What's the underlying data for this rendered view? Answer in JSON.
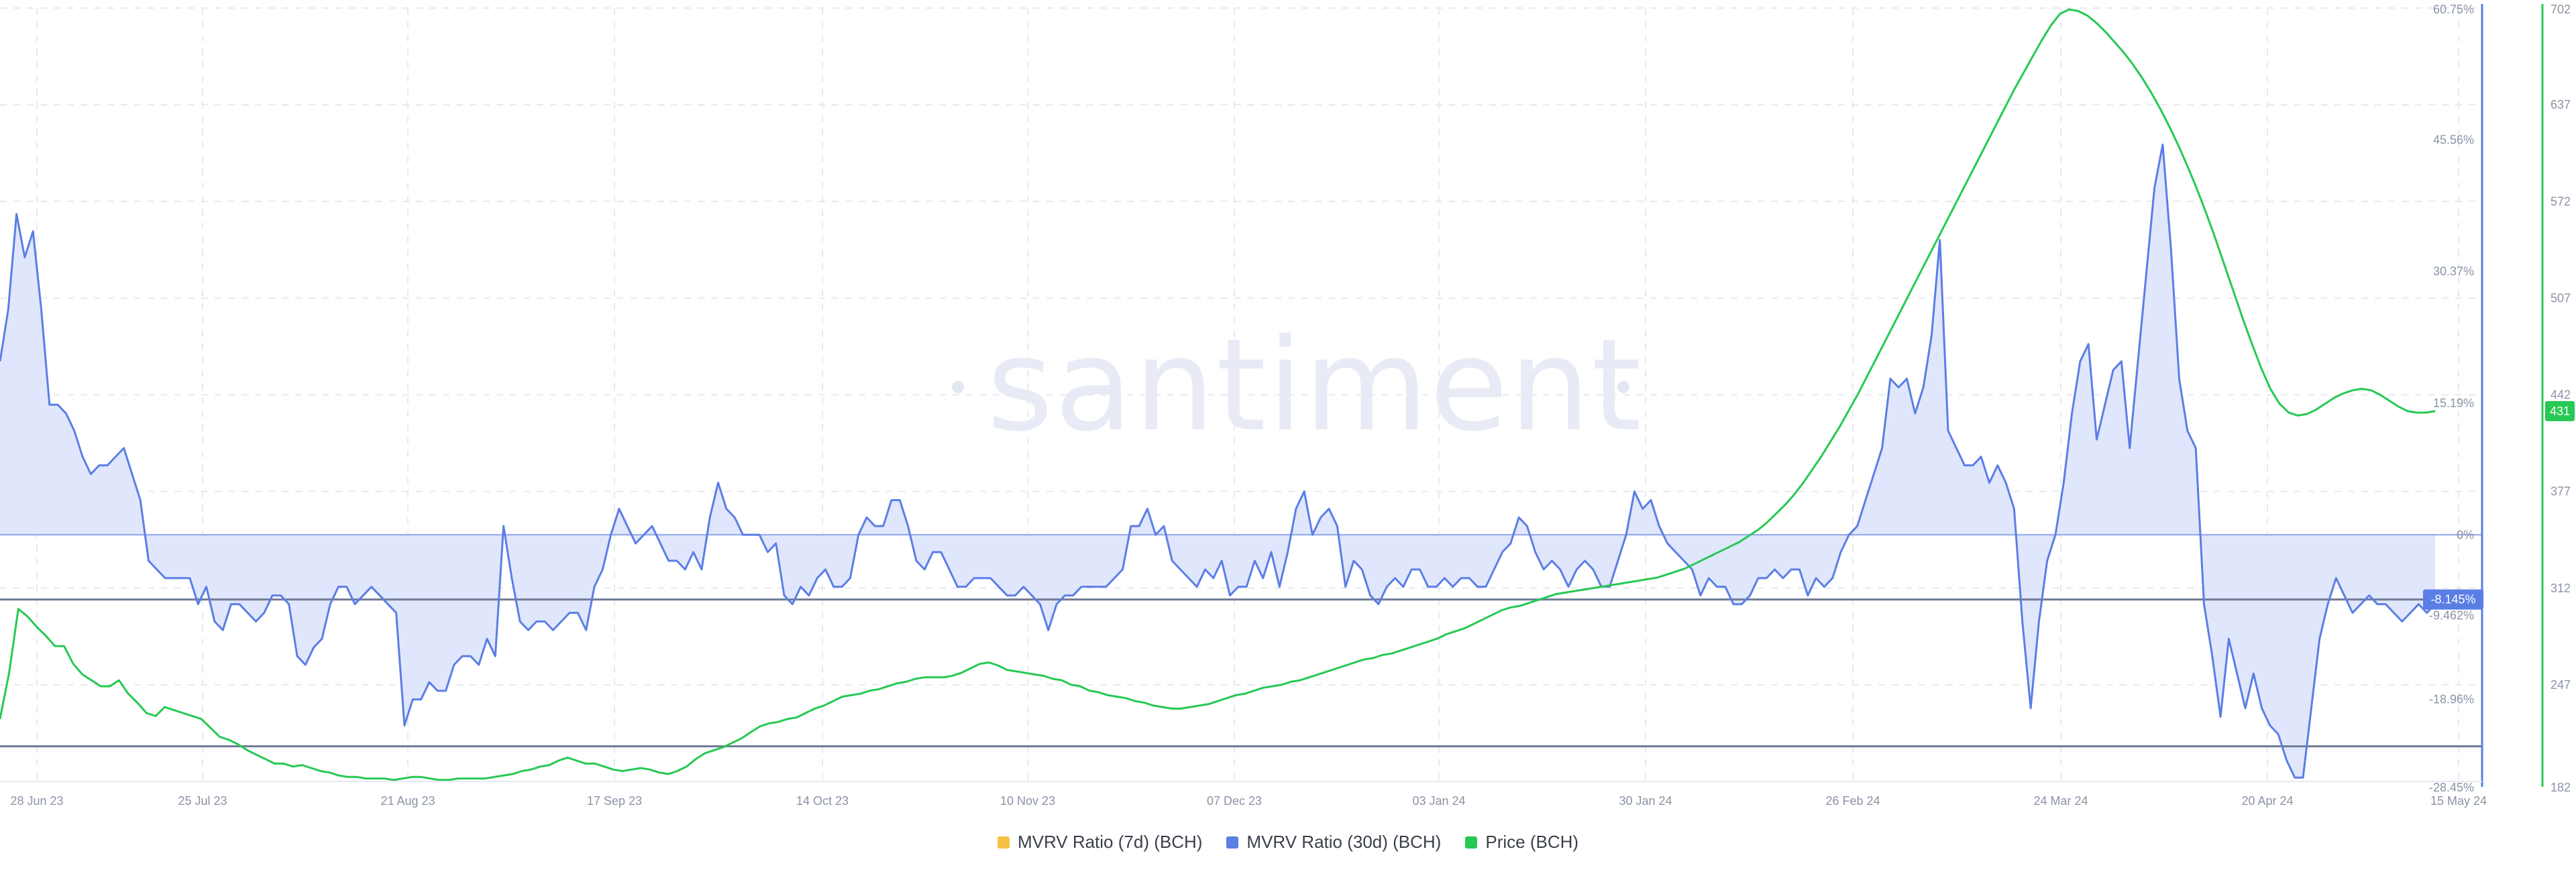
{
  "watermark": "santiment",
  "chart_data": {
    "type": "line",
    "x_labels": [
      "28 Jun 23",
      "25 Jul 23",
      "21 Aug 23",
      "17 Sep 23",
      "14 Oct 23",
      "10 Nov 23",
      "07 Dec 23",
      "03 Jan 24",
      "30 Jan 24",
      "26 Feb 24",
      "24 Mar 24",
      "20 Apr 24",
      "15 May 24"
    ],
    "mvrv_axis": {
      "min": -28.45,
      "max": 60.75,
      "ticks": [
        "60.75%",
        "45.56%",
        "30.37%",
        "15.19%",
        "0%",
        "-18.96%",
        "-28.45%"
      ],
      "tick_values": [
        60.75,
        45.56,
        30.37,
        15.19,
        0,
        -18.96,
        -28.45
      ]
    },
    "price_axis": {
      "min": 182,
      "max": 702,
      "ticks": [
        "702",
        "637",
        "572",
        "507",
        "442",
        "377",
        "312",
        "247",
        "182"
      ],
      "tick_values": [
        702,
        637,
        572,
        507,
        442,
        377,
        312,
        247,
        182
      ]
    },
    "reference_lines": [
      -7.462,
      -24.4
    ],
    "current_mvrv_badge": "-8.145%",
    "current_price_badge": "431",
    "hidden_label": "-9.462%",
    "series": [
      {
        "name": "MVRV Ratio (7d) (BCH)",
        "color": "#f5c244",
        "visible": false,
        "values": []
      },
      {
        "name": "MVRV Ratio (30d) (BCH)",
        "color": "#5b7ee5",
        "visible": true,
        "values": [
          20,
          26,
          37,
          32,
          35,
          26,
          15,
          15,
          14,
          12,
          9,
          7,
          8,
          8,
          9,
          10,
          7,
          4,
          -3,
          -4,
          -5,
          -5,
          -5,
          -5,
          -8,
          -6,
          -10,
          -11,
          -8,
          -8,
          -9,
          -10,
          -9,
          -7,
          -7,
          -8,
          -14,
          -15,
          -13,
          -12,
          -8,
          -6,
          -6,
          -8,
          -7,
          -6,
          -7,
          -8,
          -9,
          -22,
          -19,
          -19,
          -17,
          -18,
          -18,
          -15,
          -14,
          -14,
          -15,
          -12,
          -14,
          1,
          -5,
          -10,
          -11,
          -10,
          -10,
          -11,
          -10,
          -9,
          -9,
          -11,
          -6,
          -4,
          0,
          3,
          1,
          -1,
          0,
          1,
          -1,
          -3,
          -3,
          -4,
          -2,
          -4,
          2,
          6,
          3,
          2,
          0,
          0,
          0,
          -2,
          -1,
          -7,
          -8,
          -6,
          -7,
          -5,
          -4,
          -6,
          -6,
          -5,
          0,
          2,
          1,
          1,
          4,
          4,
          1,
          -3,
          -4,
          -2,
          -2,
          -4,
          -6,
          -6,
          -5,
          -5,
          -5,
          -6,
          -7,
          -7,
          -6,
          -7,
          -8,
          -11,
          -8,
          -7,
          -7,
          -6,
          -6,
          -6,
          -6,
          -5,
          -4,
          1,
          1,
          3,
          0,
          1,
          -3,
          -4,
          -5,
          -6,
          -4,
          -5,
          -3,
          -7,
          -6,
          -6,
          -3,
          -5,
          -2,
          -6,
          -2,
          3,
          5,
          0,
          2,
          3,
          1,
          -6,
          -3,
          -4,
          -7,
          -8,
          -6,
          -5,
          -6,
          -4,
          -4,
          -6,
          -6,
          -5,
          -6,
          -5,
          -5,
          -6,
          -6,
          -4,
          -2,
          -1,
          2,
          1,
          -2,
          -4,
          -3,
          -4,
          -6,
          -4,
          -3,
          -4,
          -6,
          -6,
          -3,
          0,
          5,
          3,
          4,
          1,
          -1,
          -2,
          -3,
          -4,
          -7,
          -5,
          -6,
          -6,
          -8,
          -8,
          -7,
          -5,
          -5,
          -4,
          -5,
          -4,
          -4,
          -7,
          -5,
          -6,
          -5,
          -2,
          0,
          1,
          4,
          7,
          10,
          18,
          17,
          18,
          14,
          17,
          23,
          34,
          12,
          10,
          8,
          8,
          9,
          6,
          8,
          6,
          3,
          -10,
          -20,
          -10,
          -3,
          0,
          6,
          14,
          20,
          22,
          11,
          15,
          19,
          20,
          10,
          20,
          30,
          40,
          45,
          33,
          18,
          12,
          10,
          -8,
          -14,
          -21,
          -12,
          -16,
          -20,
          -16,
          -20,
          -22,
          -23,
          -26,
          -28,
          -28,
          -20,
          -12,
          -8,
          -5,
          -7,
          -9,
          -8,
          -7,
          -8,
          -8,
          -9,
          -10,
          -9,
          -8,
          -9,
          -8
        ]
      },
      {
        "name": "Price (BCH)",
        "color": "#26c953",
        "visible": true,
        "values": [
          224,
          255,
          298,
          293,
          286,
          280,
          273,
          273,
          261,
          254,
          250,
          246,
          246,
          250,
          241,
          235,
          228,
          226,
          232,
          230,
          228,
          226,
          224,
          218,
          212,
          210,
          207,
          203,
          200,
          197,
          194,
          194,
          192,
          193,
          191,
          189,
          188,
          186,
          185,
          185,
          184,
          184,
          184,
          183,
          184,
          185,
          185,
          184,
          183,
          183,
          184,
          184,
          184,
          184,
          185,
          186,
          187,
          189,
          190,
          192,
          193,
          196,
          198,
          196,
          194,
          194,
          192,
          190,
          189,
          190,
          191,
          190,
          188,
          187,
          189,
          192,
          197,
          201,
          203,
          205,
          208,
          211,
          215,
          219,
          221,
          222,
          224,
          225,
          228,
          231,
          233,
          236,
          239,
          240,
          241,
          243,
          244,
          246,
          248,
          249,
          251,
          252,
          252,
          252,
          253,
          255,
          258,
          261,
          262,
          260,
          257,
          256,
          255,
          254,
          253,
          251,
          250,
          247,
          246,
          243,
          242,
          240,
          239,
          238,
          236,
          235,
          233,
          232,
          231,
          231,
          232,
          233,
          234,
          236,
          238,
          240,
          241,
          243,
          245,
          246,
          247,
          249,
          250,
          252,
          254,
          256,
          258,
          260,
          262,
          264,
          265,
          267,
          268,
          270,
          272,
          274,
          276,
          278,
          281,
          283,
          285,
          288,
          291,
          294,
          297,
          299,
          300,
          302,
          304,
          306,
          308,
          309,
          310,
          311,
          312,
          313,
          314,
          315,
          316,
          317,
          318,
          319,
          321,
          323,
          325,
          328,
          331,
          334,
          337,
          340,
          343,
          347,
          351,
          356,
          362,
          368,
          375,
          383,
          392,
          401,
          411,
          421,
          432,
          443,
          455,
          467,
          479,
          491,
          503,
          515,
          527,
          539,
          551,
          563,
          575,
          587,
          599,
          611,
          623,
          635,
          647,
          658,
          669,
          680,
          690,
          698,
          701,
          700,
          697,
          692,
          686,
          679,
          672,
          664,
          655,
          645,
          634,
          622,
          609,
          595,
          580,
          564,
          547,
          529,
          511,
          493,
          476,
          460,
          446,
          436,
          430,
          428,
          429,
          432,
          436,
          440,
          443,
          445,
          446,
          445,
          442,
          438,
          434,
          431,
          430,
          430,
          431
        ]
      }
    ]
  },
  "legend": [
    {
      "label": "MVRV Ratio (7d) (BCH)",
      "color": "#f5c244"
    },
    {
      "label": "MVRV Ratio (30d) (BCH)",
      "color": "#5b7ee5"
    },
    {
      "label": "Price (BCH)",
      "color": "#26c953"
    }
  ]
}
